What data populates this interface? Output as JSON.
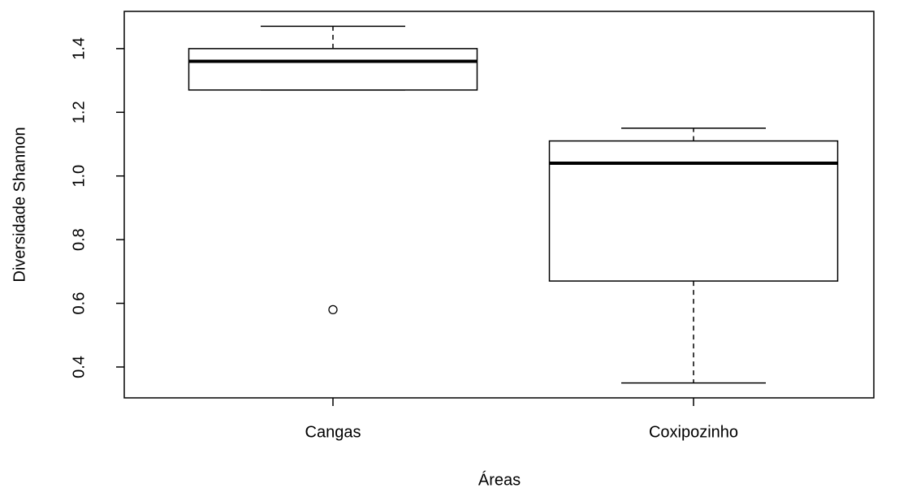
{
  "chart_data": {
    "type": "boxplot",
    "x_label": "Áreas",
    "y_label": "Diversidade Shannon",
    "categories": [
      "Cangas",
      "Coxipozinho"
    ],
    "boxes": [
      {
        "min": 1.27,
        "q1": 1.27,
        "median": 1.36,
        "q3": 1.4,
        "max": 1.47,
        "outliers": [
          0.58
        ]
      },
      {
        "min": 0.35,
        "q1": 0.67,
        "median": 1.04,
        "q3": 1.11,
        "max": 1.15,
        "outliers": []
      }
    ],
    "ylim": [
      0.303,
      1.517
    ],
    "yticks": [
      {
        "value": 0.4,
        "label": "0.4"
      },
      {
        "value": 0.6,
        "label": "0.6"
      },
      {
        "value": 0.8,
        "label": "0.8"
      },
      {
        "value": 1.0,
        "label": "1.0"
      },
      {
        "value": 1.2,
        "label": "1.2"
      },
      {
        "value": 1.4,
        "label": "1.4"
      }
    ],
    "color": "#000000"
  }
}
